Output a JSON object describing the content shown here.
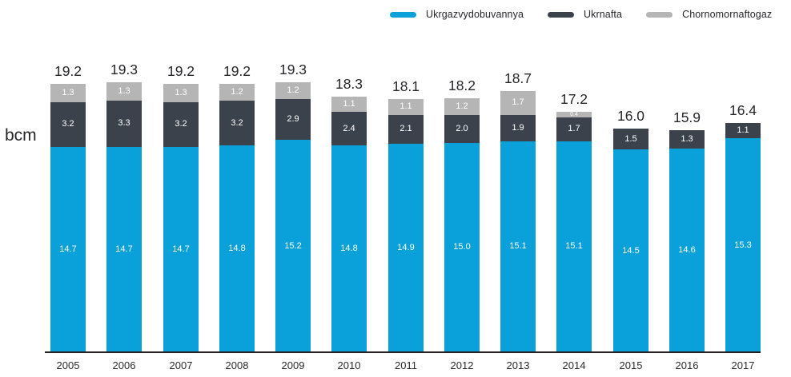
{
  "chart_data": {
    "type": "bar",
    "stacked": true,
    "title": "",
    "xlabel": "",
    "ylabel": "bcm",
    "ylim": [
      0,
      21
    ],
    "grid": false,
    "legend_position": "top",
    "categories": [
      "2005",
      "2006",
      "2007",
      "2008",
      "2009",
      "2010",
      "2011",
      "2012",
      "2013",
      "2014",
      "2015",
      "2016",
      "2017"
    ],
    "series": [
      {
        "name": "Ukrgazvydobuvannya",
        "color": "#0aa0da",
        "values": [
          "14.7",
          "14.7",
          "14.7",
          "14.8",
          "15.2",
          "14.8",
          "14.9",
          "15.0",
          "15.1",
          "15.1",
          "14.5",
          "14.6",
          "15.3"
        ]
      },
      {
        "name": "Ukrnafta",
        "color": "#3c424c",
        "values": [
          "3.2",
          "3.3",
          "3.2",
          "3.2",
          "2.9",
          "2.4",
          "2.1",
          "2.0",
          "1.9",
          "1.7",
          "1.5",
          "1.3",
          "1.1"
        ]
      },
      {
        "name": "Chornomornaftogaz",
        "color": "#b5b5b5",
        "values": [
          "1.3",
          "1.3",
          "1.3",
          "1.2",
          "1.2",
          "1.1",
          "1.1",
          "1.2",
          "1.7",
          "0.4",
          null,
          null,
          null
        ]
      }
    ],
    "totals": [
      "19.2",
      "19.3",
      "19.2",
      "19.2",
      "19.3",
      "18.3",
      "18.1",
      "18.2",
      "18.7",
      "17.2",
      "16.0",
      "15.9",
      "16.4"
    ],
    "text_color": "#26262a",
    "axis_line_color": "#231f20"
  }
}
